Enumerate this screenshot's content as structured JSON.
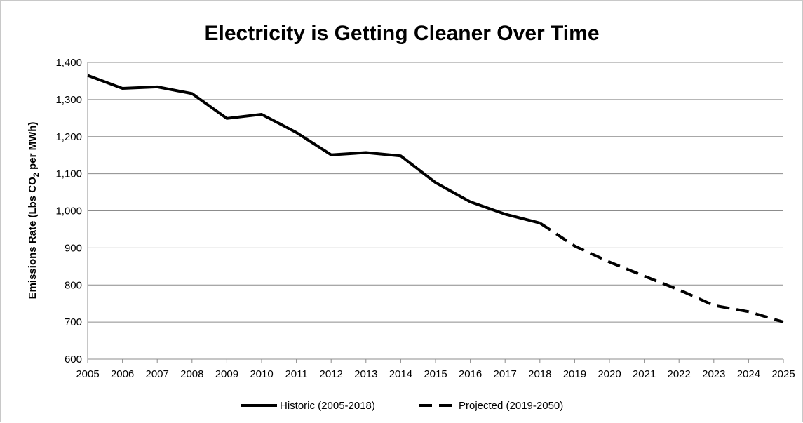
{
  "chart_data": {
    "type": "line",
    "title": "Electricity is Getting Cleaner Over Time",
    "ylabel": "Emissions Rate (Lbs CO2 per MWh)",
    "ylabel_parts": {
      "before": "Emissions Rate (Lbs CO",
      "sub": "2",
      "after": " per MWh)"
    },
    "xlabel": "",
    "ylim": [
      600,
      1400
    ],
    "yticks": [
      600,
      700,
      800,
      900,
      1000,
      1100,
      1200,
      1300,
      1400
    ],
    "ytick_labels": [
      "600",
      "700",
      "800",
      "900",
      "1,000",
      "1,100",
      "1,200",
      "1,300",
      "1,400"
    ],
    "x": [
      "2005",
      "2006",
      "2007",
      "2008",
      "2009",
      "2010",
      "2011",
      "2012",
      "2013",
      "2014",
      "2015",
      "2016",
      "2017",
      "2018",
      "2019",
      "2020",
      "2021",
      "2022",
      "2023",
      "2024",
      "2025"
    ],
    "grid": true,
    "legend_position": "bottom",
    "series": [
      {
        "name": "Historic (2005-2018)",
        "style": "solid",
        "color": "#000000",
        "points": [
          [
            "2005",
            1365
          ],
          [
            "2006",
            1330
          ],
          [
            "2007",
            1334
          ],
          [
            "2008",
            1316
          ],
          [
            "2009",
            1249
          ],
          [
            "2010",
            1260
          ],
          [
            "2011",
            1211
          ],
          [
            "2012",
            1151
          ],
          [
            "2013",
            1157
          ],
          [
            "2014",
            1148
          ],
          [
            "2015",
            1076
          ],
          [
            "2016",
            1024
          ],
          [
            "2017",
            991
          ],
          [
            "2018",
            967
          ]
        ]
      },
      {
        "name": "Projected (2019-2050)",
        "style": "dashed",
        "color": "#000000",
        "points": [
          [
            "2018",
            967
          ],
          [
            "2019",
            905
          ],
          [
            "2020",
            862
          ],
          [
            "2021",
            824
          ],
          [
            "2022",
            787
          ],
          [
            "2023",
            745
          ],
          [
            "2024",
            728
          ],
          [
            "2025",
            700
          ]
        ]
      }
    ]
  }
}
